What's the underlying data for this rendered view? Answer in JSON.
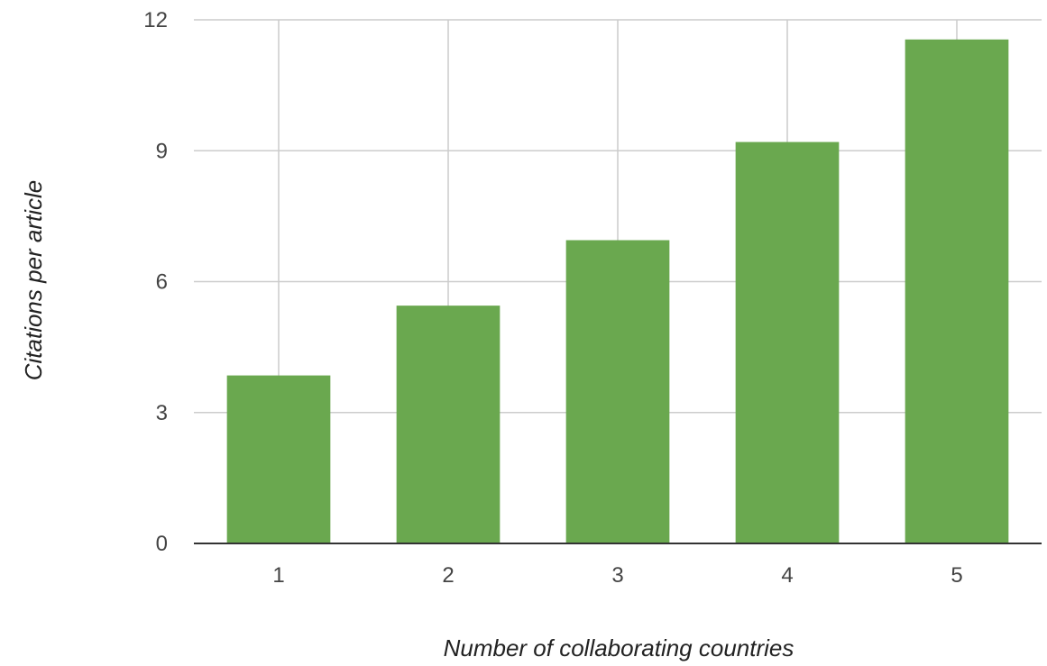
{
  "chart_data": {
    "type": "bar",
    "title": "",
    "xlabel": "Number of collaborating countries",
    "ylabel": "Citations per article",
    "categories": [
      "1",
      "2",
      "3",
      "4",
      "5"
    ],
    "series": [
      {
        "values": [
          3.85,
          5.45,
          6.95,
          9.2,
          11.55
        ]
      }
    ],
    "ylim": [
      0,
      12
    ],
    "yticks": [
      "0",
      "3",
      "6",
      "9",
      "12"
    ],
    "grid": true,
    "legend": "none",
    "colors": {
      "bar": "#6aa84f",
      "grid": "#cccccc",
      "axis": "#333333"
    }
  }
}
